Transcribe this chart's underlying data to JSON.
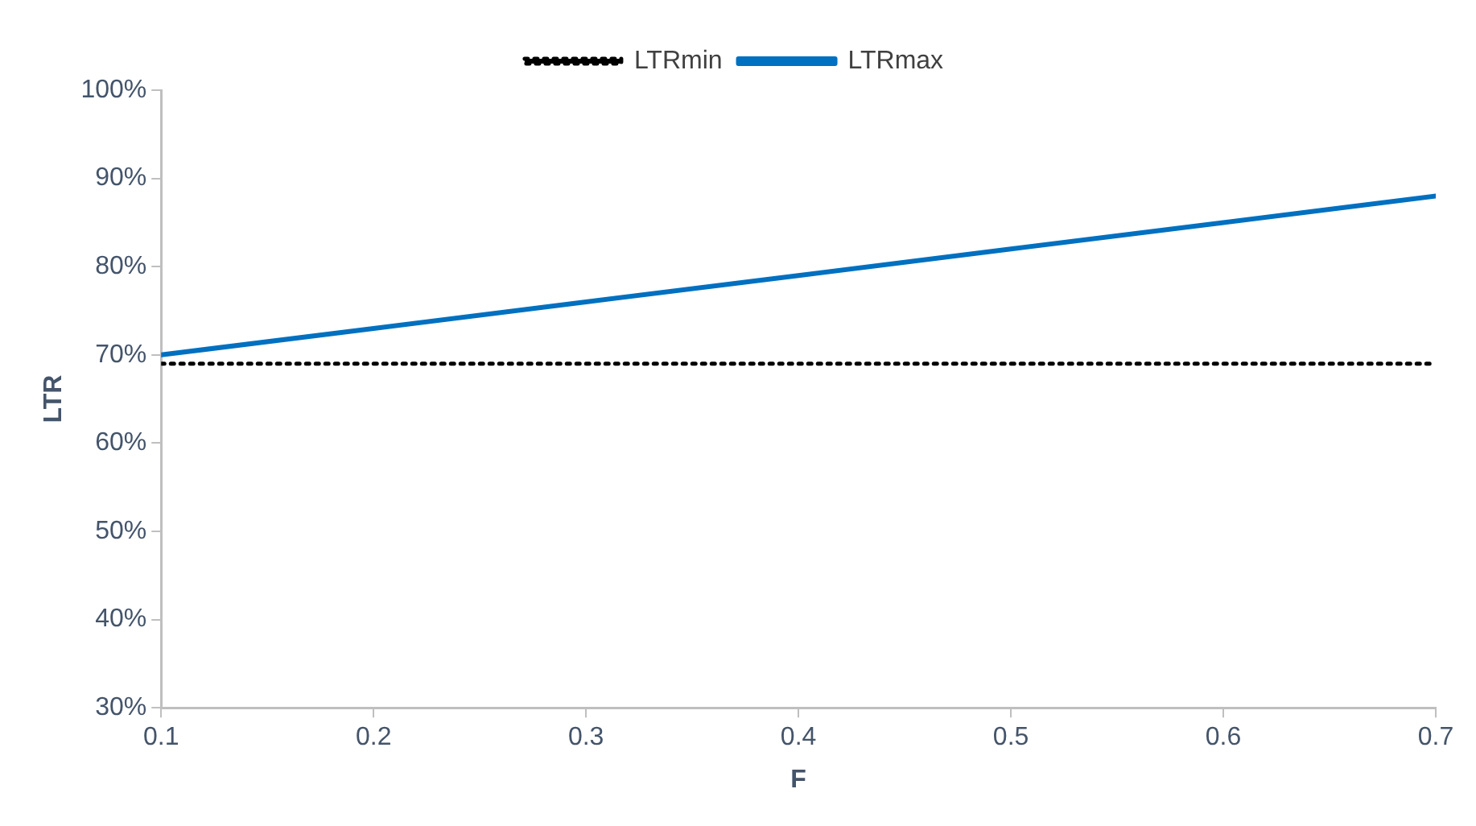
{
  "chart_data": {
    "type": "line",
    "xlabel": "F",
    "ylabel": "LTR",
    "x": [
      0.1,
      0.2,
      0.3,
      0.4,
      0.5,
      0.6,
      0.7
    ],
    "series": [
      {
        "name": "LTRmin",
        "color": "#000000",
        "line_style": "dotted",
        "values": [
          69,
          69,
          69,
          69,
          69,
          69,
          69
        ]
      },
      {
        "name": "LTRmax",
        "color": "#0070c0",
        "line_style": "solid",
        "values": [
          70,
          73,
          76,
          79,
          82,
          85,
          88
        ]
      }
    ],
    "xlim": [
      0.1,
      0.7
    ],
    "xticks": [
      0.1,
      0.2,
      0.3,
      0.4,
      0.5,
      0.6,
      0.7
    ],
    "ylim": [
      30,
      100
    ],
    "yticks": [
      {
        "value": 30,
        "label": "30%"
      },
      {
        "value": 40,
        "label": "40%"
      },
      {
        "value": 50,
        "label": "50%"
      },
      {
        "value": 60,
        "label": "60%"
      },
      {
        "value": 70,
        "label": "70%"
      },
      {
        "value": 80,
        "label": "80%"
      },
      {
        "value": 90,
        "label": "90%"
      },
      {
        "value": 100,
        "label": "100%"
      }
    ],
    "grid": false,
    "legend": "top",
    "marker": "none"
  }
}
